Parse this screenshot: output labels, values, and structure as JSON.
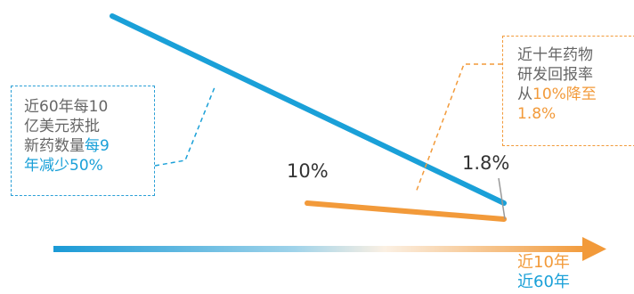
{
  "callouts": {
    "left": {
      "lines": [
        "近60年每10",
        "亿美元获批",
        "新药数量"
      ],
      "highlight_a": "每9",
      "highlight_b": "年减少50%"
    },
    "right": {
      "lines": [
        "近十年药物",
        "研发回报率"
      ],
      "prefix": "从",
      "highlight": "10%降至",
      "last": "1.8%"
    }
  },
  "labels": {
    "start_value": "10%",
    "end_value": "1.8%"
  },
  "axis": {
    "label_orange": "近10年",
    "label_blue": "近60年"
  },
  "colors": {
    "blue": "#1aa0d8",
    "orange": "#f29a3a",
    "text": "#333333"
  }
}
